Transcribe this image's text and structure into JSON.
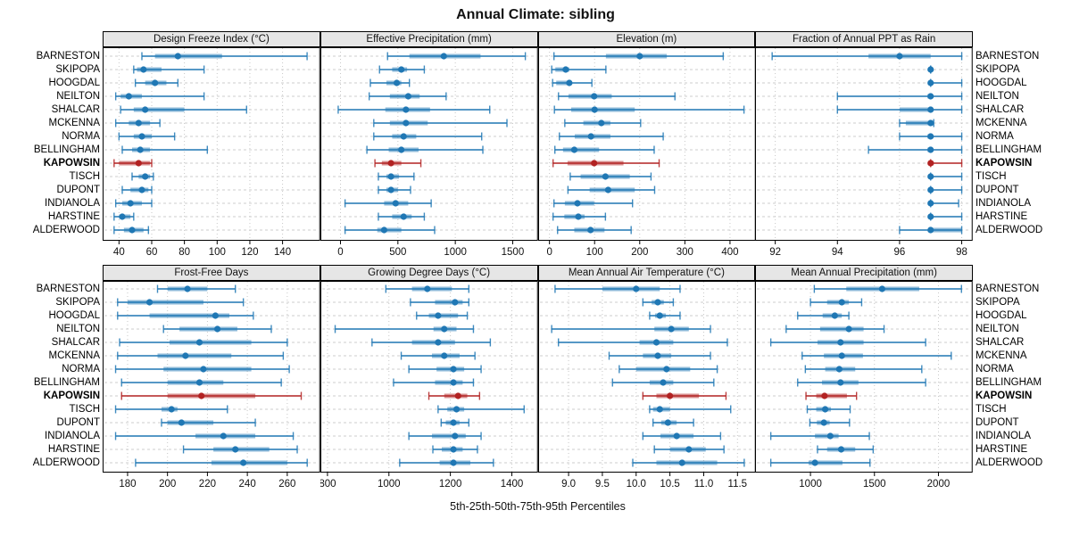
{
  "title": "Annual Climate: sibling",
  "caption": "5th-25th-50th-75th-95th Percentiles",
  "sites": [
    "BARNESTON",
    "SKIPOPA",
    "HOOGDAL",
    "NEILTON",
    "SHALCAR",
    "MCKENNA",
    "NORMA",
    "BELLINGHAM",
    "KAPOWSIN",
    "TISCH",
    "DUPONT",
    "INDIANOLA",
    "HARSTINE",
    "ALDERWOOD"
  ],
  "highlight_site": "KAPOWSIN",
  "colors": {
    "series_normal": "#1f77b4",
    "series_highlight": "#b22222",
    "strip_background": "#e6e6e6",
    "panel_border": "#000000",
    "gridline": "#c8c8c8"
  },
  "chart_data": {
    "type": "dot-whisker",
    "description": "Trellis of 8 panels; each row shows 5th-25th-50th-75th-95th percentile intervals per site. KAPOWSIN highlighted in red.",
    "legend_position": "none",
    "grid": "dashed horizontal per row, dotted vertical at ticks",
    "percentiles": [
      5,
      25,
      50,
      75,
      95
    ],
    "panels": [
      {
        "title": "Design Freeze Index (°C)",
        "slug": "design-freeze-index",
        "ticks": [
          40,
          60,
          80,
          100,
          120,
          140
        ],
        "tick_labels": [
          "40",
          "60",
          "80",
          "100",
          "120",
          "140"
        ],
        "range": [
          30,
          163
        ],
        "series": [
          [
            54,
            62,
            76,
            103,
            155
          ],
          [
            49,
            51,
            55,
            66,
            92
          ],
          [
            50,
            56,
            62,
            69,
            76
          ],
          [
            38,
            41,
            46,
            54,
            92
          ],
          [
            41,
            49,
            56,
            80,
            118
          ],
          [
            38,
            46,
            52,
            59,
            65
          ],
          [
            40,
            49,
            54,
            60,
            74
          ],
          [
            42,
            48,
            53,
            59,
            94
          ],
          [
            37,
            40,
            52,
            59,
            60
          ],
          [
            48,
            52,
            56,
            59,
            61
          ],
          [
            42,
            47,
            54,
            58,
            60
          ],
          [
            38,
            42,
            47,
            54,
            60
          ],
          [
            37,
            40,
            42,
            47,
            49
          ],
          [
            37,
            43,
            48,
            55,
            58
          ]
        ]
      },
      {
        "title": "Effective Precipitation (mm)",
        "slug": "effective-precipitation",
        "ticks": [
          0,
          500,
          1000,
          1500
        ],
        "tick_labels": [
          "0",
          "500",
          "1000",
          "1500"
        ],
        "range": [
          -175,
          1720
        ],
        "series": [
          [
            410,
            600,
            900,
            1220,
            1610
          ],
          [
            340,
            450,
            530,
            580,
            730
          ],
          [
            260,
            400,
            490,
            530,
            600
          ],
          [
            250,
            430,
            590,
            690,
            920
          ],
          [
            -20,
            390,
            570,
            780,
            1300
          ],
          [
            290,
            430,
            570,
            760,
            1450
          ],
          [
            290,
            450,
            550,
            660,
            1230
          ],
          [
            230,
            420,
            530,
            680,
            1240
          ],
          [
            300,
            360,
            440,
            530,
            700
          ],
          [
            330,
            400,
            440,
            510,
            640
          ],
          [
            330,
            400,
            440,
            500,
            610
          ],
          [
            40,
            380,
            480,
            590,
            790
          ],
          [
            330,
            450,
            550,
            620,
            730
          ],
          [
            40,
            320,
            380,
            530,
            820
          ]
        ]
      },
      {
        "title": "Elevation (m)",
        "slug": "elevation",
        "ticks": [
          0,
          100,
          200,
          300,
          400
        ],
        "tick_labels": [
          "0",
          "100",
          "200",
          "300",
          "400"
        ],
        "range": [
          -25,
          457
        ],
        "series": [
          [
            10,
            125,
            200,
            260,
            385
          ],
          [
            5,
            13,
            36,
            44,
            125
          ],
          [
            7,
            15,
            44,
            49,
            94
          ],
          [
            20,
            42,
            99,
            138,
            278
          ],
          [
            11,
            48,
            100,
            189,
            431
          ],
          [
            34,
            75,
            115,
            135,
            202
          ],
          [
            22,
            56,
            92,
            135,
            252
          ],
          [
            12,
            30,
            55,
            110,
            232
          ],
          [
            8,
            40,
            99,
            164,
            243
          ],
          [
            46,
            69,
            124,
            178,
            225
          ],
          [
            41,
            89,
            130,
            189,
            233
          ],
          [
            10,
            34,
            62,
            99,
            184
          ],
          [
            8,
            33,
            64,
            78,
            124
          ],
          [
            18,
            55,
            91,
            122,
            181
          ]
        ]
      },
      {
        "title": "Fraction of Annual PPT as Rain",
        "slug": "fraction-annual-ppt-as-rain",
        "ticks": [
          92,
          94,
          96,
          98
        ],
        "tick_labels": [
          "92",
          "94",
          "96",
          "98"
        ],
        "range": [
          91.35,
          98.35
        ],
        "series": [
          [
            91.9,
            95,
            96,
            97,
            98
          ],
          [
            97,
            97,
            97,
            97,
            97
          ],
          [
            97,
            97,
            97,
            97,
            98
          ],
          [
            94,
            96.9,
            97,
            97,
            98
          ],
          [
            94,
            96,
            97,
            97,
            98
          ],
          [
            96,
            96.2,
            97,
            97,
            97.1
          ],
          [
            96,
            96.9,
            97,
            97,
            98
          ],
          [
            95,
            96.9,
            97,
            97,
            98
          ],
          [
            97,
            97,
            97,
            97.1,
            98
          ],
          [
            97,
            97,
            97,
            97,
            98
          ],
          [
            97,
            97,
            97,
            97,
            98
          ],
          [
            97,
            97,
            97,
            97,
            97.9
          ],
          [
            97,
            97,
            97,
            97,
            98
          ],
          [
            96,
            97,
            97,
            98,
            98
          ]
        ]
      },
      {
        "title": "Frost-Free Days",
        "slug": "frost-free-days",
        "ticks": [
          180,
          200,
          220,
          240,
          260
        ],
        "tick_labels": [
          "180",
          "200",
          "220",
          "240",
          "260"
        ],
        "range": [
          167.5,
          276.5
        ],
        "series": [
          [
            195,
            200,
            210,
            220,
            234
          ],
          [
            175,
            180,
            191,
            218,
            238
          ],
          [
            175,
            191,
            224,
            231,
            243
          ],
          [
            198,
            206,
            225,
            235,
            252
          ],
          [
            176,
            201,
            216,
            242,
            260
          ],
          [
            175,
            195,
            209,
            232,
            258
          ],
          [
            174,
            198,
            218,
            242,
            261
          ],
          [
            177,
            200,
            216,
            228,
            257
          ],
          [
            177,
            200,
            217,
            244,
            267
          ],
          [
            174,
            197,
            202,
            205,
            230
          ],
          [
            197,
            200,
            207,
            223,
            244
          ],
          [
            174,
            214,
            228,
            244,
            263
          ],
          [
            208,
            223,
            234,
            251,
            265
          ],
          [
            184,
            222,
            238,
            260,
            270
          ]
        ]
      },
      {
        "title": "Growing Degree Days (°C)",
        "slug": "growing-degree-days",
        "ticks": [
          800,
          1000,
          1200,
          1400
        ],
        "tick_labels": [
          "800",
          "1000",
          "1200",
          "1400"
        ],
        "range": [
          777,
          1485
        ],
        "series": [
          [
            990,
            1075,
            1125,
            1205,
            1260
          ],
          [
            1070,
            1150,
            1215,
            1240,
            1260
          ],
          [
            1090,
            1130,
            1160,
            1225,
            1255
          ],
          [
            825,
            1145,
            1180,
            1220,
            1275
          ],
          [
            945,
            1075,
            1160,
            1215,
            1330
          ],
          [
            1040,
            1140,
            1180,
            1230,
            1280
          ],
          [
            1065,
            1155,
            1210,
            1245,
            1300
          ],
          [
            1015,
            1150,
            1210,
            1240,
            1275
          ],
          [
            1130,
            1180,
            1225,
            1255,
            1295
          ],
          [
            1160,
            1190,
            1220,
            1245,
            1440
          ],
          [
            1170,
            1185,
            1210,
            1230,
            1260
          ],
          [
            1065,
            1140,
            1215,
            1250,
            1300
          ],
          [
            1143,
            1172,
            1210,
            1240,
            1288
          ],
          [
            1035,
            1165,
            1210,
            1265,
            1340
          ]
        ]
      },
      {
        "title": "Mean Annual Air Temperature (°C)",
        "slug": "mean-annual-air-temperature",
        "ticks": [
          9,
          9.5,
          10,
          10.5,
          11,
          11.5
        ],
        "tick_labels": [
          "9.0",
          "9.5",
          "10.0",
          "10.5",
          "11.0",
          "11.5"
        ],
        "range": [
          8.55,
          11.77
        ],
        "series": [
          [
            8.8,
            9.5,
            10.0,
            10.35,
            10.65
          ],
          [
            10.1,
            10.23,
            10.32,
            10.41,
            10.55
          ],
          [
            10.2,
            10.28,
            10.35,
            10.44,
            10.65
          ],
          [
            8.75,
            10.27,
            10.52,
            10.78,
            11.1
          ],
          [
            8.85,
            10.05,
            10.3,
            10.55,
            11.35
          ],
          [
            9.6,
            10.1,
            10.32,
            10.52,
            11.1
          ],
          [
            9.75,
            10.0,
            10.45,
            10.8,
            11.2
          ],
          [
            9.65,
            10.2,
            10.4,
            10.55,
            11.15
          ],
          [
            10.1,
            10.3,
            10.5,
            10.93,
            11.33
          ],
          [
            10.2,
            10.25,
            10.35,
            10.5,
            11.4
          ],
          [
            10.25,
            10.37,
            10.47,
            10.6,
            10.85
          ],
          [
            10.1,
            10.36,
            10.6,
            10.85,
            11.25
          ],
          [
            10.27,
            10.5,
            10.78,
            11.03,
            11.3
          ],
          [
            9.95,
            10.3,
            10.68,
            11.2,
            11.6
          ]
        ]
      },
      {
        "title": "Mean Annual Precipitation (mm)",
        "slug": "mean-annual-precipitation",
        "ticks": [
          1000,
          1500,
          2000
        ],
        "tick_labels": [
          "1000",
          "1500",
          "2000"
        ],
        "range": [
          567,
          2267
        ],
        "series": [
          [
            1030,
            1280,
            1560,
            1850,
            2180
          ],
          [
            1000,
            1130,
            1245,
            1300,
            1400
          ],
          [
            900,
            1095,
            1190,
            1245,
            1300
          ],
          [
            810,
            1075,
            1300,
            1415,
            1575
          ],
          [
            690,
            1055,
            1235,
            1415,
            1900
          ],
          [
            935,
            1105,
            1245,
            1410,
            2100
          ],
          [
            960,
            1115,
            1225,
            1350,
            1870
          ],
          [
            900,
            1090,
            1235,
            1375,
            1900
          ],
          [
            965,
            1045,
            1110,
            1285,
            1360
          ],
          [
            975,
            1045,
            1115,
            1160,
            1310
          ],
          [
            995,
            1050,
            1105,
            1150,
            1305
          ],
          [
            690,
            1035,
            1155,
            1220,
            1460
          ],
          [
            1055,
            1130,
            1240,
            1350,
            1490
          ],
          [
            690,
            985,
            1035,
            1250,
            1465
          ]
        ]
      }
    ]
  }
}
